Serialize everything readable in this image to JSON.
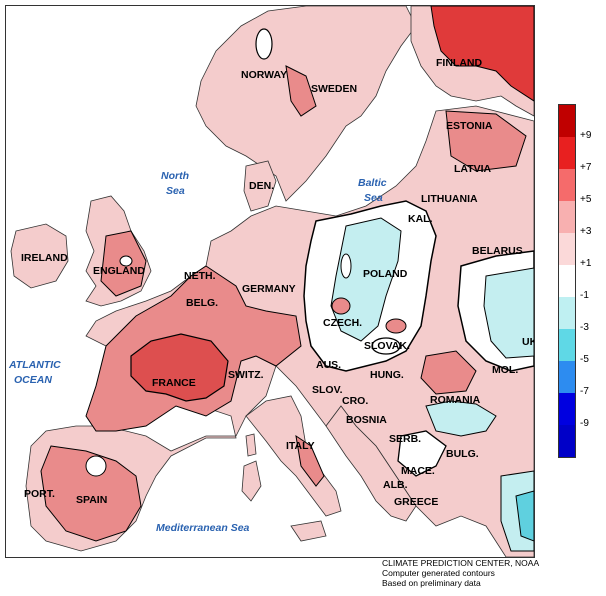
{
  "map": {
    "countries": [
      {
        "name": "FINLAND"
      },
      {
        "name": "NORWAY"
      },
      {
        "name": "SWEDEN"
      },
      {
        "name": "ESTONIA"
      },
      {
        "name": "LATVIA"
      },
      {
        "name": "DEN."
      },
      {
        "name": "LITHUANIA"
      },
      {
        "name": "KAL."
      },
      {
        "name": "IRELAND"
      },
      {
        "name": "ENGLAND"
      },
      {
        "name": "BELARUS"
      },
      {
        "name": "NETH."
      },
      {
        "name": "GERMANY"
      },
      {
        "name": "POLAND"
      },
      {
        "name": "BELG."
      },
      {
        "name": "CZECH."
      },
      {
        "name": "SLOVAK."
      },
      {
        "name": "UK"
      },
      {
        "name": "FRANCE"
      },
      {
        "name": "SWITZ."
      },
      {
        "name": "AUS."
      },
      {
        "name": "HUNG."
      },
      {
        "name": "MOL."
      },
      {
        "name": "SLOV."
      },
      {
        "name": "CRO."
      },
      {
        "name": "ROMANIA"
      },
      {
        "name": "BOSNIA"
      },
      {
        "name": "SERB."
      },
      {
        "name": "ITALY"
      },
      {
        "name": "BULG."
      },
      {
        "name": "MACE."
      },
      {
        "name": "PORT."
      },
      {
        "name": "SPAIN"
      },
      {
        "name": "ALB."
      },
      {
        "name": "GREECE"
      }
    ],
    "seas": [
      {
        "lines": [
          "North",
          "Sea"
        ]
      },
      {
        "lines": [
          "Baltic",
          "Sea"
        ]
      },
      {
        "lines": [
          "ATLANTIC",
          "OCEAN"
        ]
      },
      {
        "lines": [
          "Mediterranean Sea"
        ]
      }
    ],
    "colors": {
      "land_base": "#f4cccc",
      "land_warm": "#e98b8b",
      "land_hot": "#dd4f4f",
      "land_neutral": "#ffffff",
      "land_cool": "#c4eef0",
      "land_cooler": "#5fd0df"
    }
  },
  "legend": {
    "ticks": [
      "+9",
      "+7",
      "+5",
      "+3",
      "+1",
      "-1",
      "-3",
      "-5",
      "-7",
      "-9"
    ],
    "colors": [
      "#c00000",
      "#e82020",
      "#f56b6b",
      "#f8b0b0",
      "#fbd9d9",
      "#ffffff",
      "#bff0f2",
      "#5fd8e6",
      "#2d8cf0",
      "#0000e0",
      "#0000c8"
    ]
  },
  "credits": {
    "line1": "CLIMATE PREDICTION CENTER, NOAA",
    "line2": "Computer generated contours",
    "line3": "Based on preliminary data"
  }
}
